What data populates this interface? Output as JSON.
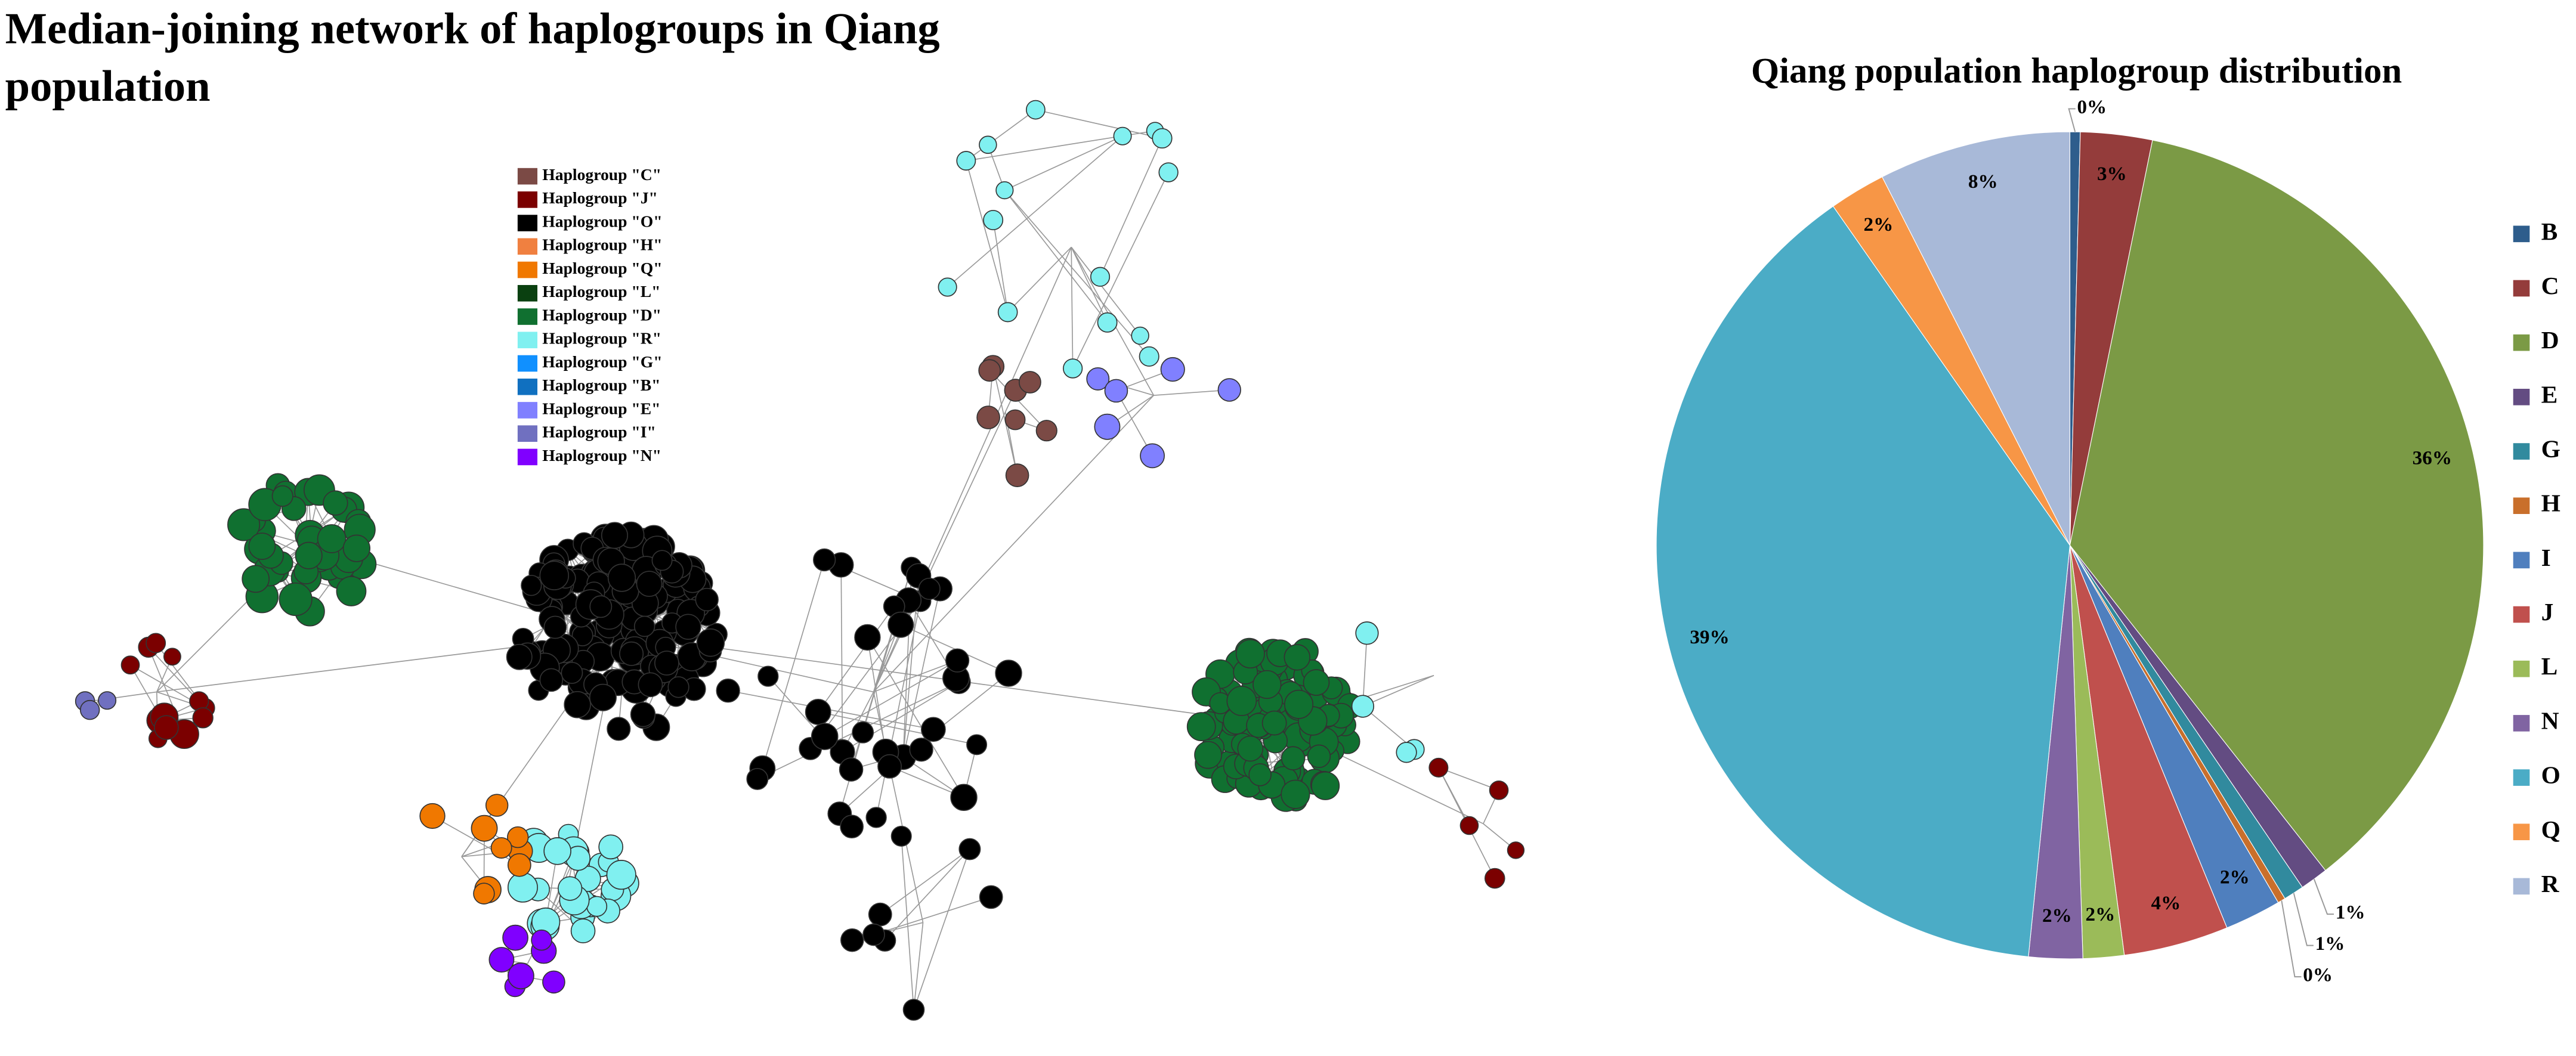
{
  "network": {
    "title": [
      "Median-joining network of haplogroups in Qiang",
      "population"
    ],
    "legend": [
      {
        "label": "Haplogroup \"C\"",
        "color": "#7b4a45"
      },
      {
        "label": "Haplogroup \"J\"",
        "color": "#7b0000"
      },
      {
        "label": "Haplogroup \"O\"",
        "color": "#000000"
      },
      {
        "label": "Haplogroup \"H\"",
        "color": "#f08040"
      },
      {
        "label": "Haplogroup \"Q\"",
        "color": "#f07800"
      },
      {
        "label": "Haplogroup \"L\"",
        "color": "#0a4010"
      },
      {
        "label": "Haplogroup \"D\"",
        "color": "#107030"
      },
      {
        "label": "Haplogroup \"R\"",
        "color": "#80f0f0"
      },
      {
        "label": "Haplogroup \"G\"",
        "color": "#1090ff"
      },
      {
        "label": "Haplogroup \"B\"",
        "color": "#1070c0"
      },
      {
        "label": "Haplogroup \"E\"",
        "color": "#8080ff"
      },
      {
        "label": "Haplogroup \"I\"",
        "color": "#7070c0"
      },
      {
        "label": "Haplogroup \"N\"",
        "color": "#8000ff"
      }
    ]
  },
  "chart_data": {
    "type": "pie",
    "title": "Qiang population haplogroup distribution",
    "categories": [
      "B",
      "C",
      "D",
      "E",
      "G",
      "H",
      "I",
      "J",
      "L",
      "N",
      "O",
      "Q",
      "R"
    ],
    "values": [
      0.4,
      2.8,
      36.2,
      1.1,
      0.8,
      0.3,
      2.2,
      4.1,
      1.6,
      2.1,
      38.7,
      2.2,
      7.5
    ],
    "value_labels": [
      "0%",
      "3%",
      "36%",
      "1%",
      "1%",
      "0%",
      "2%",
      "4%",
      "2%",
      "2%",
      "39%",
      "2%",
      "8%"
    ],
    "colors": [
      "#2e5d8c",
      "#943c3b",
      "#7b9a45",
      "#634c82",
      "#318a9e",
      "#c96f2b",
      "#4f7fbe",
      "#c0504d",
      "#9bbb59",
      "#8064a2",
      "#4bacc6",
      "#f79646",
      "#a8b9d8"
    ],
    "legend": "right"
  }
}
